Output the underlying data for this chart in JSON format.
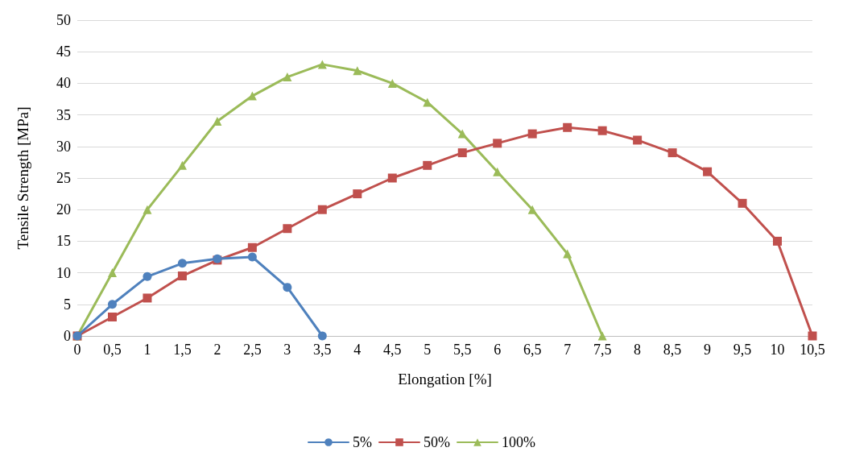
{
  "chart_data": {
    "type": "line",
    "xlabel": "Elongation [%]",
    "ylabel": "Tensile Strength [MPa]",
    "categories": [
      "0",
      "0,5",
      "1",
      "1,5",
      "2",
      "2,5",
      "3",
      "3,5",
      "4",
      "4,5",
      "5",
      "5,5",
      "6",
      "6,5",
      "7",
      "7,5",
      "8",
      "8,5",
      "9",
      "9,5",
      "10",
      "10,5"
    ],
    "series": [
      {
        "name": "5%",
        "color": "#4f81bd",
        "marker": "circle",
        "values": [
          0,
          5,
          9.4,
          11.5,
          12.2,
          12.5,
          7.7,
          0,
          null,
          null,
          null,
          null,
          null,
          null,
          null,
          null,
          null,
          null,
          null,
          null,
          null,
          null
        ]
      },
      {
        "name": "50%",
        "color": "#c0504d",
        "marker": "square",
        "values": [
          0,
          3,
          6,
          9.5,
          12,
          14,
          17,
          20,
          22.5,
          25,
          27,
          29,
          30.5,
          32,
          33,
          32.5,
          31,
          29,
          26,
          21,
          15,
          0
        ]
      },
      {
        "name": "100%",
        "color": "#9bbb59",
        "marker": "triangle",
        "values": [
          0,
          10,
          20,
          27,
          34,
          38,
          41,
          43,
          42,
          40,
          37,
          32,
          26,
          20,
          13,
          0,
          null,
          null,
          null,
          null,
          null,
          null
        ]
      }
    ],
    "ylim": [
      0,
      50
    ],
    "yticks": [
      0,
      5,
      10,
      15,
      20,
      25,
      30,
      35,
      40,
      45,
      50
    ],
    "grid": "y",
    "legend": "bottom",
    "line_style": "solid"
  }
}
